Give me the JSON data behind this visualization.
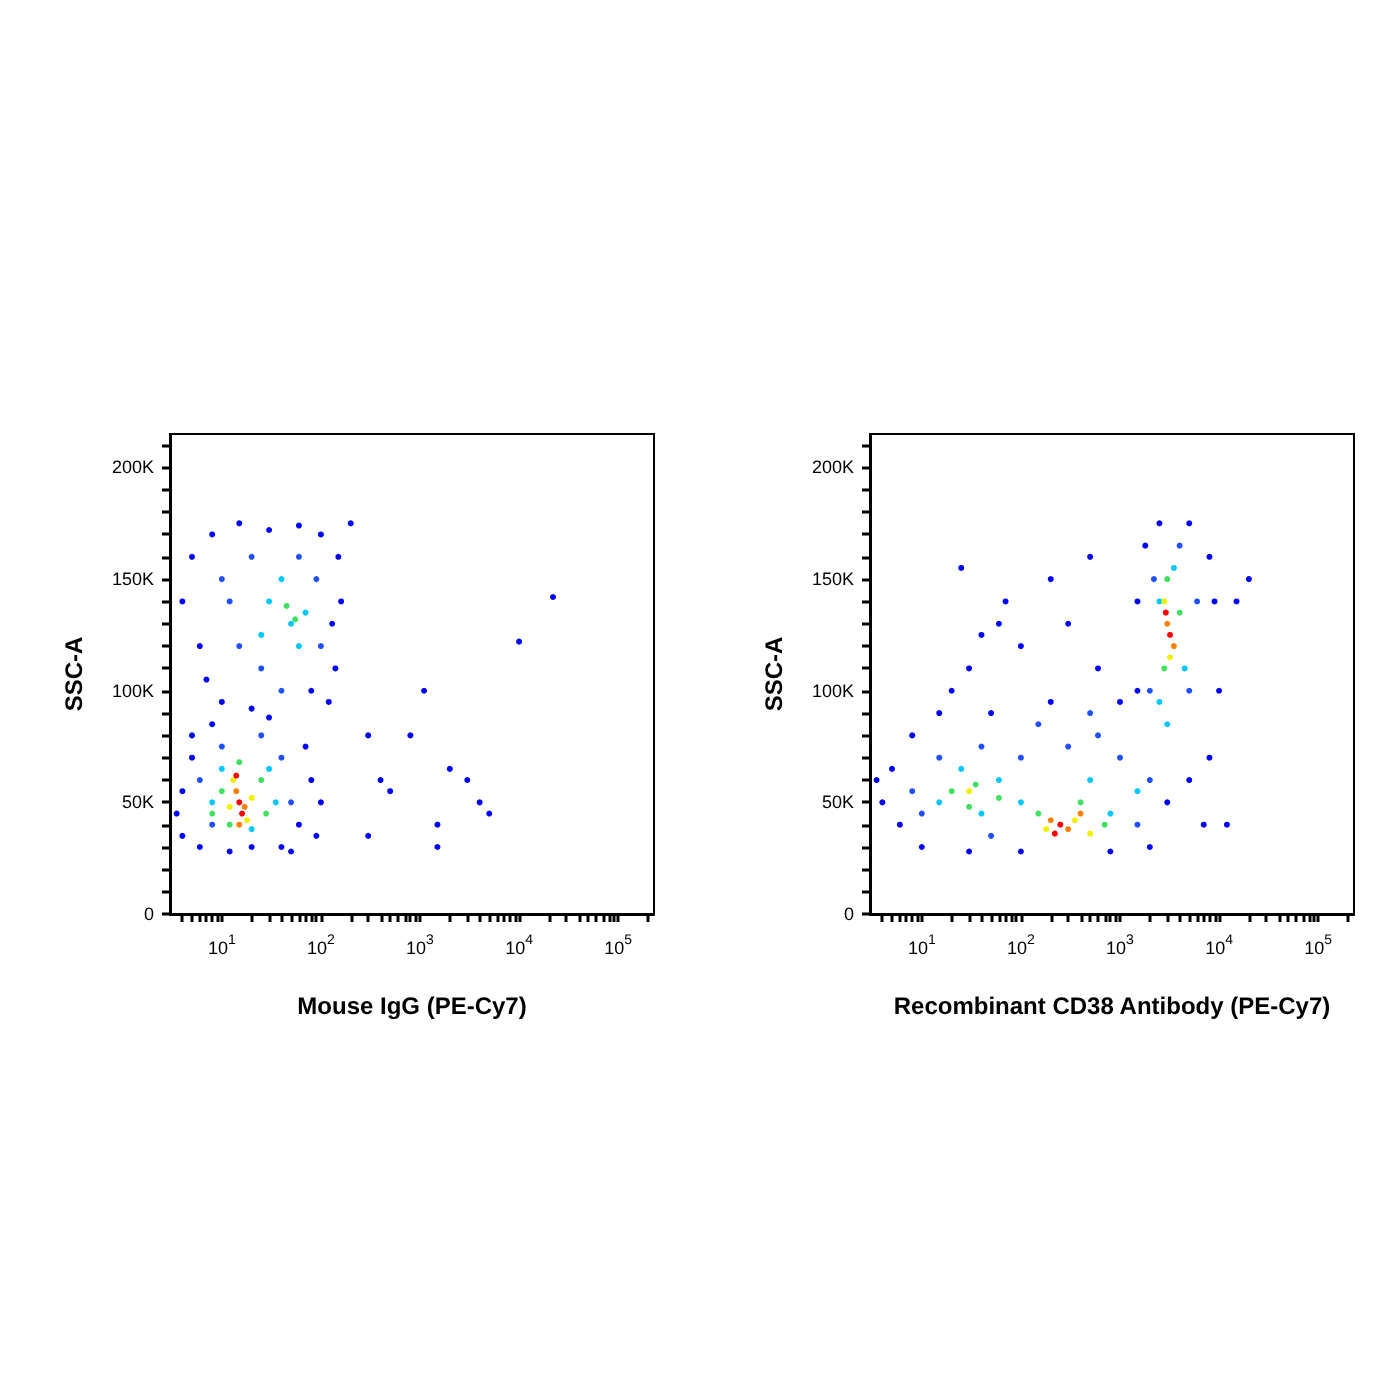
{
  "chart_data": [
    {
      "type": "scatter",
      "xlabel": "Mouse IgG (PE-Cy7)",
      "ylabel": "SSC-A",
      "log": "x",
      "grid": false,
      "marker": "circle",
      "xlim": [
        3,
        230000
      ],
      "ylim": [
        0,
        215000
      ],
      "xticks": [
        {
          "value": 4,
          "label": null
        },
        {
          "value": 5,
          "label": null
        },
        {
          "value": 6,
          "label": null
        },
        {
          "value": 7,
          "label": null
        },
        {
          "value": 8,
          "label": null
        },
        {
          "value": 9,
          "label": null
        },
        {
          "value": 10,
          "label": "10$^{1}$"
        },
        {
          "value": 20,
          "label": null
        },
        {
          "value": 30,
          "label": null
        },
        {
          "value": 40,
          "label": null
        },
        {
          "value": 50,
          "label": null
        },
        {
          "value": 60,
          "label": null
        },
        {
          "value": 70,
          "label": null
        },
        {
          "value": 80,
          "label": null
        },
        {
          "value": 90,
          "label": null
        },
        {
          "value": 100,
          "label": "10$^{2}$"
        },
        {
          "value": 200,
          "label": null
        },
        {
          "value": 300,
          "label": null
        },
        {
          "value": 400,
          "label": null
        },
        {
          "value": 500,
          "label": null
        },
        {
          "value": 600,
          "label": null
        },
        {
          "value": 700,
          "label": null
        },
        {
          "value": 800,
          "label": null
        },
        {
          "value": 900,
          "label": null
        },
        {
          "value": 1000,
          "label": "10$^{3}$"
        },
        {
          "value": 2000,
          "label": null
        },
        {
          "value": 3000,
          "label": null
        },
        {
          "value": 4000,
          "label": null
        },
        {
          "value": 5000,
          "label": null
        },
        {
          "value": 6000,
          "label": null
        },
        {
          "value": 7000,
          "label": null
        },
        {
          "value": 8000,
          "label": null
        },
        {
          "value": 9000,
          "label": null
        },
        {
          "value": 10000,
          "label": "10$^{4}$"
        },
        {
          "value": 20000,
          "label": null
        },
        {
          "value": 30000,
          "label": null
        },
        {
          "value": 40000,
          "label": null
        },
        {
          "value": 50000,
          "label": null
        },
        {
          "value": 60000,
          "label": null
        },
        {
          "value": 70000,
          "label": null
        },
        {
          "value": 80000,
          "label": null
        },
        {
          "value": 90000,
          "label": null
        },
        {
          "value": 100000,
          "label": "10$^{5}$"
        },
        {
          "value": 200000,
          "label": null
        }
      ],
      "yticks": [
        {
          "value": 0,
          "label": "0"
        },
        {
          "value": 10000,
          "label": null
        },
        {
          "value": 20000,
          "label": null
        },
        {
          "value": 30000,
          "label": null
        },
        {
          "value": 40000,
          "label": null
        },
        {
          "value": 50000,
          "label": "50K"
        },
        {
          "value": 60000,
          "label": null
        },
        {
          "value": 70000,
          "label": null
        },
        {
          "value": 80000,
          "label": null
        },
        {
          "value": 90000,
          "label": null
        },
        {
          "value": 100000,
          "label": "100K"
        },
        {
          "value": 110000,
          "label": null
        },
        {
          "value": 120000,
          "label": null
        },
        {
          "value": 130000,
          "label": null
        },
        {
          "value": 140000,
          "label": null
        },
        {
          "value": 150000,
          "label": "150K"
        },
        {
          "value": 160000,
          "label": null
        },
        {
          "value": 170000,
          "label": null
        },
        {
          "value": 180000,
          "label": null
        },
        {
          "value": 190000,
          "label": null
        },
        {
          "value": 200000,
          "label": "200K"
        },
        {
          "value": 210000,
          "label": null
        }
      ],
      "series": [
        {
          "color": "#0000ff",
          "x": [
            4,
            5,
            4,
            6,
            8,
            40,
            60,
            80,
            70,
            30,
            3.5,
            5,
            100,
            50,
            12,
            20,
            90,
            5,
            8,
            15,
            30,
            60,
            100,
            150,
            130,
            140,
            120,
            6,
            4,
            10,
            7,
            20,
            80,
            200,
            160,
            300,
            400,
            1100,
            800,
            2000,
            3000,
            4000,
            1500,
            5000,
            10000,
            22000,
            1500,
            300,
            500
          ],
          "values": [
            35000,
            70000,
            55000,
            30000,
            85000,
            30000,
            40000,
            60000,
            75000,
            88000,
            45000,
            80000,
            50000,
            28000,
            28000,
            30000,
            35000,
            160000,
            170000,
            175000,
            172000,
            174000,
            170000,
            160000,
            130000,
            110000,
            95000,
            120000,
            140000,
            95000,
            105000,
            92000,
            100000,
            175000,
            140000,
            80000,
            60000,
            100000,
            80000,
            65000,
            60000,
            50000,
            40000,
            45000,
            122000,
            142000,
            30000,
            35000,
            55000
          ]
        },
        {
          "color": "#2050ff",
          "x": [
            10,
            15,
            20,
            40,
            90,
            100,
            25,
            60,
            12,
            8,
            10,
            40,
            50,
            6,
            25
          ],
          "values": [
            150000,
            120000,
            160000,
            100000,
            150000,
            120000,
            110000,
            160000,
            140000,
            40000,
            75000,
            70000,
            50000,
            60000,
            80000
          ]
        },
        {
          "color": "#00c8ff",
          "x": [
            30,
            50,
            40,
            70,
            25,
            60,
            8,
            30,
            20,
            35,
            10
          ],
          "values": [
            140000,
            130000,
            150000,
            135000,
            125000,
            120000,
            50000,
            65000,
            38000,
            50000,
            65000
          ]
        },
        {
          "color": "#40e060",
          "x": [
            45,
            55,
            10,
            25,
            12,
            28,
            15,
            8
          ],
          "values": [
            138000,
            132000,
            55000,
            60000,
            40000,
            45000,
            68000,
            45000
          ]
        },
        {
          "color": "#f0f000",
          "x": [
            13,
            20,
            12,
            18
          ],
          "values": [
            60000,
            52000,
            48000,
            42000
          ]
        },
        {
          "color": "#ff8000",
          "x": [
            14,
            17,
            15
          ],
          "values": [
            55000,
            48000,
            40000
          ]
        },
        {
          "color": "#ff0000",
          "x": [
            15,
            16,
            14
          ],
          "values": [
            50000,
            45000,
            62000
          ]
        }
      ]
    },
    {
      "type": "scatter",
      "xlabel": "Recombinant CD38 Antibody (PE-Cy7)",
      "ylabel": "SSC-A",
      "log": "x",
      "grid": false,
      "marker": "circle",
      "xlim": [
        3,
        230000
      ],
      "ylim": [
        0,
        215000
      ],
      "xticks": [
        {
          "value": 4,
          "label": null
        },
        {
          "value": 5,
          "label": null
        },
        {
          "value": 6,
          "label": null
        },
        {
          "value": 7,
          "label": null
        },
        {
          "value": 8,
          "label": null
        },
        {
          "value": 9,
          "label": null
        },
        {
          "value": 10,
          "label": "10$^{1}$"
        },
        {
          "value": 20,
          "label": null
        },
        {
          "value": 30,
          "label": null
        },
        {
          "value": 40,
          "label": null
        },
        {
          "value": 50,
          "label": null
        },
        {
          "value": 60,
          "label": null
        },
        {
          "value": 70,
          "label": null
        },
        {
          "value": 80,
          "label": null
        },
        {
          "value": 90,
          "label": null
        },
        {
          "value": 100,
          "label": "10$^{2}$"
        },
        {
          "value": 200,
          "label": null
        },
        {
          "value": 300,
          "label": null
        },
        {
          "value": 400,
          "label": null
        },
        {
          "value": 500,
          "label": null
        },
        {
          "value": 600,
          "label": null
        },
        {
          "value": 700,
          "label": null
        },
        {
          "value": 800,
          "label": null
        },
        {
          "value": 900,
          "label": null
        },
        {
          "value": 1000,
          "label": "10$^{3}$"
        },
        {
          "value": 2000,
          "label": null
        },
        {
          "value": 3000,
          "label": null
        },
        {
          "value": 4000,
          "label": null
        },
        {
          "value": 5000,
          "label": null
        },
        {
          "value": 6000,
          "label": null
        },
        {
          "value": 7000,
          "label": null
        },
        {
          "value": 8000,
          "label": null
        },
        {
          "value": 9000,
          "label": null
        },
        {
          "value": 10000,
          "label": "10$^{4}$"
        },
        {
          "value": 20000,
          "label": null
        },
        {
          "value": 30000,
          "label": null
        },
        {
          "value": 40000,
          "label": null
        },
        {
          "value": 50000,
          "label": null
        },
        {
          "value": 60000,
          "label": null
        },
        {
          "value": 70000,
          "label": null
        },
        {
          "value": 80000,
          "label": null
        },
        {
          "value": 90000,
          "label": null
        },
        {
          "value": 100000,
          "label": "10$^{5}$"
        },
        {
          "value": 200000,
          "label": null
        }
      ],
      "yticks": [
        {
          "value": 0,
          "label": "0"
        },
        {
          "value": 10000,
          "label": null
        },
        {
          "value": 20000,
          "label": null
        },
        {
          "value": 30000,
          "label": null
        },
        {
          "value": 40000,
          "label": null
        },
        {
          "value": 50000,
          "label": "50K"
        },
        {
          "value": 60000,
          "label": null
        },
        {
          "value": 70000,
          "label": null
        },
        {
          "value": 80000,
          "label": null
        },
        {
          "value": 90000,
          "label": null
        },
        {
          "value": 100000,
          "label": "100K"
        },
        {
          "value": 110000,
          "label": null
        },
        {
          "value": 120000,
          "label": null
        },
        {
          "value": 130000,
          "label": null
        },
        {
          "value": 140000,
          "label": null
        },
        {
          "value": 150000,
          "label": "150K"
        },
        {
          "value": 160000,
          "label": null
        },
        {
          "value": 170000,
          "label": null
        },
        {
          "value": 180000,
          "label": null
        },
        {
          "value": 190000,
          "label": null
        },
        {
          "value": 200000,
          "label": "200K"
        },
        {
          "value": 210000,
          "label": null
        }
      ],
      "series": [
        {
          "color": "#0000ff",
          "x": [
            4,
            5,
            6,
            8,
            10,
            15,
            20,
            30,
            40,
            70,
            200,
            500,
            100,
            300,
            600,
            1000,
            30,
            100,
            800,
            2000,
            3000,
            5000,
            8000,
            10000,
            9000,
            8000,
            5000,
            2500,
            1800,
            1500,
            1500,
            200,
            50,
            3.5,
            15000,
            20000,
            12000,
            7000,
            25,
            60
          ],
          "values": [
            50000,
            65000,
            40000,
            80000,
            30000,
            90000,
            100000,
            110000,
            125000,
            140000,
            150000,
            160000,
            120000,
            130000,
            110000,
            95000,
            28000,
            28000,
            28000,
            30000,
            50000,
            60000,
            70000,
            100000,
            140000,
            160000,
            175000,
            175000,
            165000,
            140000,
            100000,
            95000,
            90000,
            60000,
            140000,
            150000,
            40000,
            40000,
            155000,
            130000
          ]
        },
        {
          "color": "#2050ff",
          "x": [
            8,
            15,
            40,
            100,
            300,
            600,
            1000,
            2000,
            1500,
            50,
            10,
            2000,
            6000,
            5000,
            2200,
            4000,
            500,
            150
          ],
          "values": [
            55000,
            70000,
            75000,
            70000,
            75000,
            80000,
            70000,
            60000,
            40000,
            35000,
            45000,
            100000,
            140000,
            100000,
            150000,
            165000,
            90000,
            85000
          ]
        },
        {
          "color": "#00c8ff",
          "x": [
            15,
            25,
            60,
            100,
            500,
            800,
            1500,
            40,
            2500,
            4500,
            3500,
            2500,
            3000
          ],
          "values": [
            50000,
            65000,
            60000,
            50000,
            60000,
            45000,
            55000,
            45000,
            95000,
            110000,
            155000,
            140000,
            85000
          ]
        },
        {
          "color": "#40e060",
          "x": [
            20,
            35,
            60,
            150,
            400,
            700,
            2800,
            4000,
            3000,
            30
          ],
          "values": [
            55000,
            58000,
            52000,
            45000,
            50000,
            40000,
            110000,
            135000,
            150000,
            48000
          ]
        },
        {
          "color": "#f0f000",
          "x": [
            30,
            180,
            350,
            500,
            3200,
            2800
          ],
          "values": [
            55000,
            38000,
            42000,
            36000,
            115000,
            140000
          ]
        },
        {
          "color": "#ff8000",
          "x": [
            200,
            300,
            400,
            3000,
            3500
          ],
          "values": [
            42000,
            38000,
            45000,
            130000,
            120000
          ]
        },
        {
          "color": "#ff0000",
          "x": [
            250,
            220,
            3200,
            2900
          ],
          "values": [
            40000,
            36000,
            125000,
            135000
          ]
        }
      ]
    }
  ]
}
